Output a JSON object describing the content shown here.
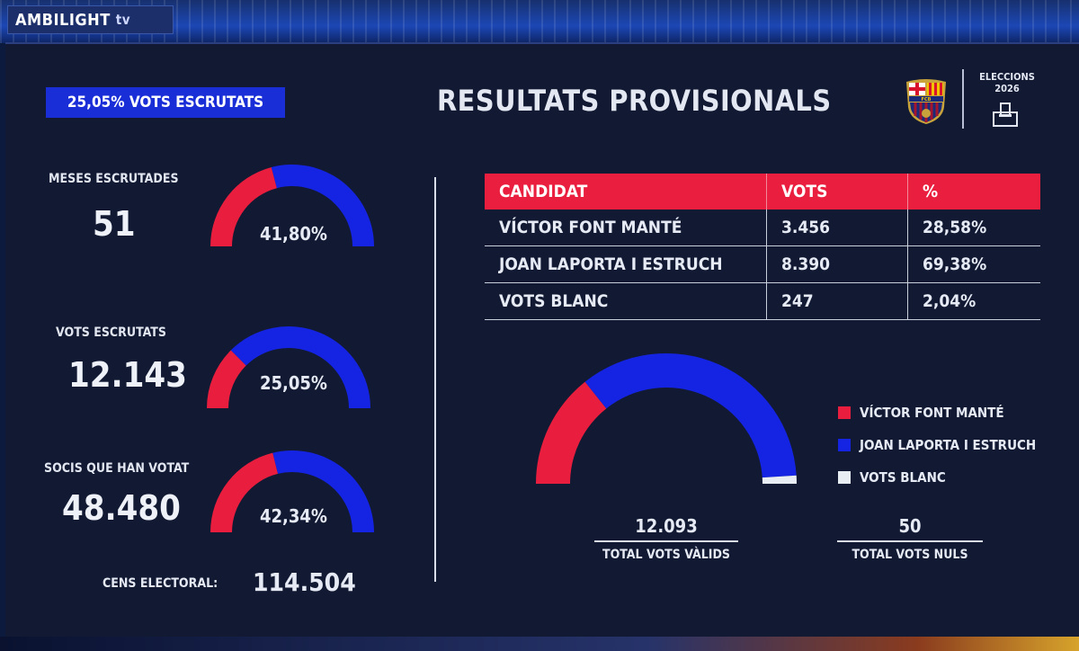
{
  "broadcaster": {
    "name": "AMBILIGHT",
    "suffix": "tv"
  },
  "header": {
    "scrutinized_badge": "25,05%  VOTS ESCRUTATS",
    "title": "RESULTATS PROVISIONALS",
    "crest_text": "FCB",
    "election_label_line1": "ELECCIONS",
    "election_label_line2": "2026"
  },
  "colors": {
    "red": "#e91e3f",
    "blue": "#1524e3",
    "white": "#e8ecf3",
    "background": "#121a33"
  },
  "stats": [
    {
      "label": "MESES ESCRUTADES",
      "value": "51",
      "percent_text": "41,80%",
      "fraction": 0.418
    },
    {
      "label": "VOTS ESCRUTATS",
      "value": "12.143",
      "percent_text": "25,05%",
      "fraction": 0.2505
    },
    {
      "label": "SOCIS QUE HAN VOTAT",
      "value": "48.480",
      "percent_text": "42,34%",
      "fraction": 0.4234
    }
  ],
  "census": {
    "label": "CENS ELECTORAL:",
    "value": "114.504"
  },
  "results_table": {
    "headers": [
      "CANDIDAT",
      "VOTS",
      "%"
    ],
    "rows": [
      {
        "candidate": "VÍCTOR FONT MANTÉ",
        "votes": "3.456",
        "percent": "28,58%"
      },
      {
        "candidate": "JOAN LAPORTA I ESTRUCH",
        "votes": "8.390",
        "percent": "69,38%"
      },
      {
        "candidate": "VOTS BLANC",
        "votes": "247",
        "percent": "2,04%"
      }
    ]
  },
  "chart_data": {
    "type": "pie",
    "shape": "half-donut",
    "categories": [
      "VÍCTOR FONT MANTÉ",
      "JOAN LAPORTA I ESTRUCH",
      "VOTS BLANC"
    ],
    "values": [
      28.58,
      69.38,
      2.04
    ],
    "colors": [
      "#e91e3f",
      "#1524e3",
      "#e8ecf3"
    ],
    "legend_position": "right"
  },
  "totals": [
    {
      "value": "12.093",
      "label": "TOTAL VOTS VÀLIDS"
    },
    {
      "value": "50",
      "label": "TOTAL VOTS NULS"
    }
  ]
}
